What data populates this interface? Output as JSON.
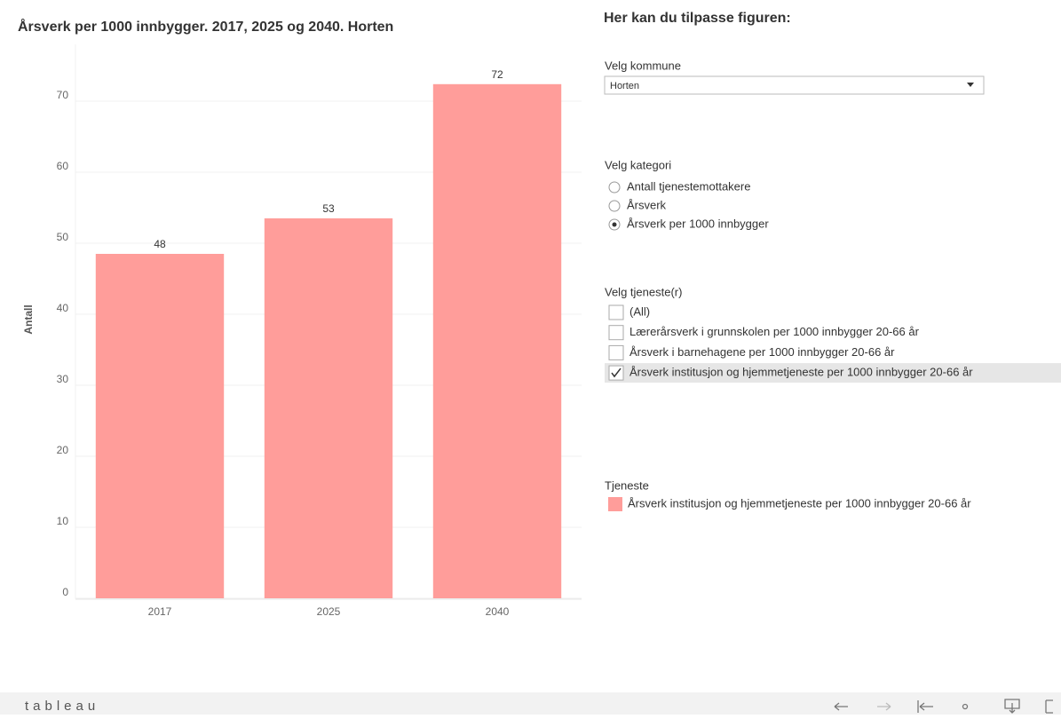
{
  "chart_data": {
    "type": "bar",
    "title": "Årsverk per 1000 innbygger. 2017, 2025 og 2040. Horten",
    "ylabel": "Antall",
    "categories": [
      "2017",
      "2025",
      "2040"
    ],
    "series": [
      {
        "name": "Årsverk institusjon og hjemmetjeneste per 1000 innbygger 20-66 år",
        "color": "#ff9d9a",
        "values": [
          48.5,
          53.5,
          72.4
        ],
        "value_labels": [
          "48",
          "53",
          "72"
        ]
      }
    ],
    "ylim": [
      0,
      78
    ],
    "yticks": [
      0,
      10,
      20,
      30,
      40,
      50,
      60,
      70
    ],
    "grid": true,
    "legend_title": "Tjeneste"
  },
  "panel": {
    "heading": "Her kan du tilpasse figuren:",
    "kommune": {
      "label": "Velg kommune",
      "selected": "Horten"
    },
    "kategori": {
      "label": "Velg kategori",
      "options": [
        "Antall tjenestemottakere",
        "Årsverk",
        "Årsverk per 1000 innbygger"
      ],
      "selected_index": 2
    },
    "tjeneste": {
      "label": "Velg tjeneste(r)",
      "options": [
        "(All)",
        "Lærerårsverk i grunnskolen per 1000 innbygger 20-66 år",
        "Årsverk i barnehagene per 1000 innbygger 20-66 år",
        "Årsverk institusjon og hjemmetjeneste per 1000 innbygger 20-66 år"
      ],
      "checked": [
        false,
        false,
        false,
        true
      ]
    }
  },
  "footer": {
    "logo": "tableau"
  }
}
